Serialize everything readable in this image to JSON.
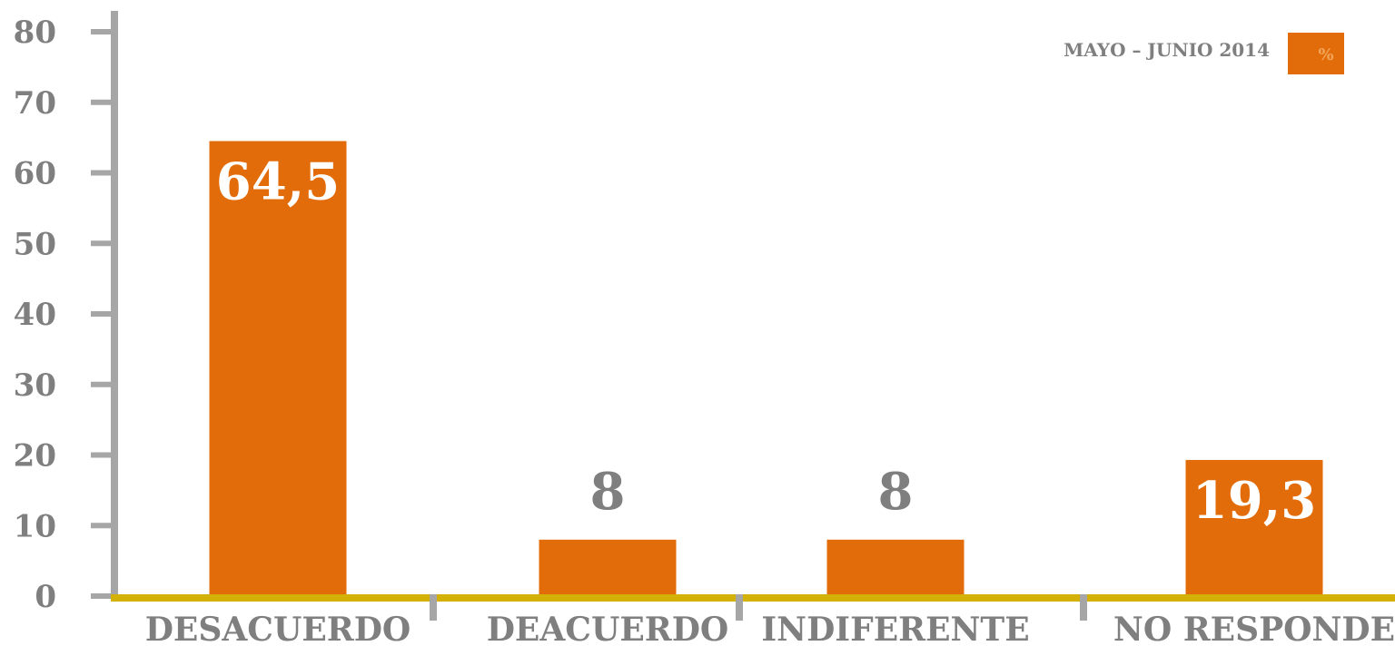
{
  "chart_data": {
    "type": "bar",
    "categories": [
      "DESACUERDO",
      "DEACUERDO",
      "INDIFERENTE",
      "NO RESPONDE"
    ],
    "series": [
      {
        "name": "%",
        "values": [
          64.5,
          8,
          8,
          19.3
        ]
      }
    ],
    "value_labels": [
      "64,5",
      "8",
      "8",
      "19,3"
    ],
    "yticks": [
      "0",
      "10",
      "20",
      "30",
      "40",
      "50",
      "60",
      "70",
      "80"
    ],
    "ylim": [
      0,
      80
    ],
    "legend": {
      "title": "MAYO – JUNIO 2014",
      "entry": "%",
      "position": "top-right"
    },
    "grid": false,
    "colors": {
      "bar": "#e36c0a",
      "y_axis": "#a6a6a6",
      "x_axis": "#d4b106",
      "text": "#7f7f7f"
    }
  }
}
